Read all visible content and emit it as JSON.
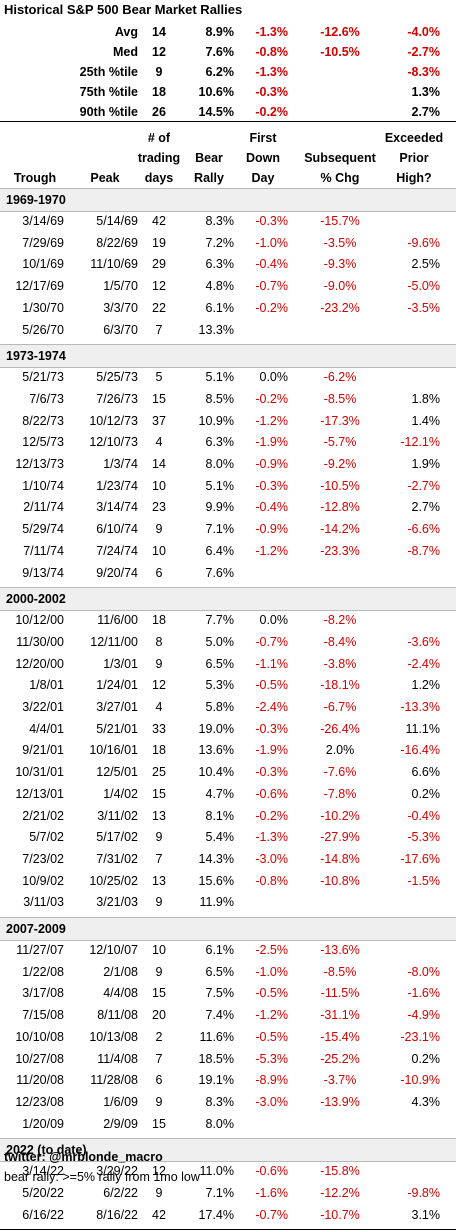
{
  "title": "Historical S&P 500 Bear Market Rallies",
  "summary": [
    {
      "label": "Avg",
      "days": "14",
      "rally": "8.9%",
      "first": "-1.3%",
      "subsequent": "-12.6%",
      "exceeded": "-4.0%"
    },
    {
      "label": "Med",
      "days": "12",
      "rally": "7.6%",
      "first": "-0.8%",
      "subsequent": "-10.5%",
      "exceeded": "-2.7%"
    },
    {
      "label": "25th %tile",
      "days": "9",
      "rally": "6.2%",
      "first": "-1.3%",
      "subsequent": "",
      "exceeded": "-8.3%"
    },
    {
      "label": "75th %tile",
      "days": "18",
      "rally": "10.6%",
      "first": "-0.3%",
      "subsequent": "",
      "exceeded": "1.3%"
    },
    {
      "label": "90th %tile",
      "days": "26",
      "rally": "14.5%",
      "first": "-0.2%",
      "subsequent": "",
      "exceeded": "2.7%"
    }
  ],
  "headers": {
    "trough": "Trough",
    "peak": "Peak",
    "days": [
      "# of",
      "trading",
      "days"
    ],
    "rally": [
      "Bear",
      "Rally"
    ],
    "first": [
      "First",
      "Down",
      "Day"
    ],
    "subsequent": [
      "Subsequent",
      "% Chg"
    ],
    "exceeded": [
      "Exceeded",
      "Prior",
      "High?"
    ]
  },
  "groups": [
    {
      "name": "1969-1970",
      "rows": [
        [
          "3/14/69",
          "5/14/69",
          "42",
          "8.3%",
          "-0.3%",
          "-15.7%",
          ""
        ],
        [
          "7/29/69",
          "8/22/69",
          "19",
          "7.2%",
          "-1.0%",
          "-3.5%",
          "-9.6%"
        ],
        [
          "10/1/69",
          "11/10/69",
          "29",
          "6.3%",
          "-0.4%",
          "-9.3%",
          "2.5%"
        ],
        [
          "12/17/69",
          "1/5/70",
          "12",
          "4.8%",
          "-0.7%",
          "-9.0%",
          "-5.0%"
        ],
        [
          "1/30/70",
          "3/3/70",
          "22",
          "6.1%",
          "-0.2%",
          "-23.2%",
          "-3.5%"
        ],
        [
          "5/26/70",
          "6/3/70",
          "7",
          "13.3%",
          "",
          "",
          ""
        ]
      ]
    },
    {
      "name": "1973-1974",
      "rows": [
        [
          "5/21/73",
          "5/25/73",
          "5",
          "5.1%",
          "0.0%",
          "-6.2%",
          ""
        ],
        [
          "7/6/73",
          "7/26/73",
          "15",
          "8.5%",
          "-0.2%",
          "-8.5%",
          "1.8%"
        ],
        [
          "8/22/73",
          "10/12/73",
          "37",
          "10.9%",
          "-1.2%",
          "-17.3%",
          "1.4%"
        ],
        [
          "12/5/73",
          "12/10/73",
          "4",
          "6.3%",
          "-1.9%",
          "-5.7%",
          "-12.1%"
        ],
        [
          "12/13/73",
          "1/3/74",
          "14",
          "8.0%",
          "-0.9%",
          "-9.2%",
          "1.9%"
        ],
        [
          "1/10/74",
          "1/23/74",
          "10",
          "5.1%",
          "-0.3%",
          "-10.5%",
          "-2.7%"
        ],
        [
          "2/11/74",
          "3/14/74",
          "23",
          "9.9%",
          "-0.4%",
          "-12.8%",
          "2.7%"
        ],
        [
          "5/29/74",
          "6/10/74",
          "9",
          "7.1%",
          "-0.9%",
          "-14.2%",
          "-6.6%"
        ],
        [
          "7/11/74",
          "7/24/74",
          "10",
          "6.4%",
          "-1.2%",
          "-23.3%",
          "-8.7%"
        ],
        [
          "9/13/74",
          "9/20/74",
          "6",
          "7.6%",
          "",
          "",
          ""
        ]
      ]
    },
    {
      "name": "2000-2002",
      "rows": [
        [
          "10/12/00",
          "11/6/00",
          "18",
          "7.7%",
          "0.0%",
          "-8.2%",
          ""
        ],
        [
          "11/30/00",
          "12/11/00",
          "8",
          "5.0%",
          "-0.7%",
          "-8.4%",
          "-3.6%"
        ],
        [
          "12/20/00",
          "1/3/01",
          "9",
          "6.5%",
          "-1.1%",
          "-3.8%",
          "-2.4%"
        ],
        [
          "1/8/01",
          "1/24/01",
          "12",
          "5.3%",
          "-0.5%",
          "-18.1%",
          "1.2%"
        ],
        [
          "3/22/01",
          "3/27/01",
          "4",
          "5.8%",
          "-2.4%",
          "-6.7%",
          "-13.3%"
        ],
        [
          "4/4/01",
          "5/21/01",
          "33",
          "19.0%",
          "-0.3%",
          "-26.4%",
          "11.1%"
        ],
        [
          "9/21/01",
          "10/16/01",
          "18",
          "13.6%",
          "-1.9%",
          "2.0%",
          "-16.4%"
        ],
        [
          "10/31/01",
          "12/5/01",
          "25",
          "10.4%",
          "-0.3%",
          "-7.6%",
          "6.6%"
        ],
        [
          "12/13/01",
          "1/4/02",
          "15",
          "4.7%",
          "-0.6%",
          "-7.8%",
          "0.2%"
        ],
        [
          "2/21/02",
          "3/11/02",
          "13",
          "8.1%",
          "-0.2%",
          "-10.2%",
          "-0.4%"
        ],
        [
          "5/7/02",
          "5/17/02",
          "9",
          "5.4%",
          "-1.3%",
          "-27.9%",
          "-5.3%"
        ],
        [
          "7/23/02",
          "7/31/02",
          "7",
          "14.3%",
          "-3.0%",
          "-14.8%",
          "-17.6%"
        ],
        [
          "10/9/02",
          "10/25/02",
          "13",
          "15.6%",
          "-0.8%",
          "-10.8%",
          "-1.5%"
        ],
        [
          "3/11/03",
          "3/21/03",
          "9",
          "11.9%",
          "",
          "",
          ""
        ]
      ]
    },
    {
      "name": "2007-2009",
      "rows": [
        [
          "11/27/07",
          "12/10/07",
          "10",
          "6.1%",
          "-2.5%",
          "-13.6%",
          ""
        ],
        [
          "1/22/08",
          "2/1/08",
          "9",
          "6.5%",
          "-1.0%",
          "-8.5%",
          "-8.0%"
        ],
        [
          "3/17/08",
          "4/4/08",
          "15",
          "7.5%",
          "-0.5%",
          "-11.5%",
          "-1.6%"
        ],
        [
          "7/15/08",
          "8/11/08",
          "20",
          "7.4%",
          "-1.2%",
          "-31.1%",
          "-4.9%"
        ],
        [
          "10/10/08",
          "10/13/08",
          "2",
          "11.6%",
          "-0.5%",
          "-15.4%",
          "-23.1%"
        ],
        [
          "10/27/08",
          "11/4/08",
          "7",
          "18.5%",
          "-5.3%",
          "-25.2%",
          "0.2%"
        ],
        [
          "11/20/08",
          "11/28/08",
          "6",
          "19.1%",
          "-8.9%",
          "-3.7%",
          "-10.9%"
        ],
        [
          "12/23/08",
          "1/6/09",
          "9",
          "8.3%",
          "-3.0%",
          "-13.9%",
          "4.3%"
        ],
        [
          "1/20/09",
          "2/9/09",
          "15",
          "8.0%",
          "",
          "",
          ""
        ]
      ]
    },
    {
      "name": "2022 (to date)",
      "rows": [
        [
          "3/14/22",
          "3/29/22",
          "12",
          "11.0%",
          "-0.6%",
          "-15.8%",
          ""
        ],
        [
          "5/20/22",
          "6/2/22",
          "9",
          "7.1%",
          "-1.6%",
          "-12.2%",
          "-9.8%"
        ],
        [
          "6/16/22",
          "8/16/22",
          "42",
          "17.4%",
          "-0.7%",
          "-10.7%",
          "3.1%"
        ]
      ]
    }
  ],
  "footer": {
    "twitter": "twitter: @mrblonde_macro",
    "note": "bear rally: >=5% rally from 1mo low"
  },
  "colors": {
    "negative": "#d40000",
    "group_band": "#efefef"
  }
}
